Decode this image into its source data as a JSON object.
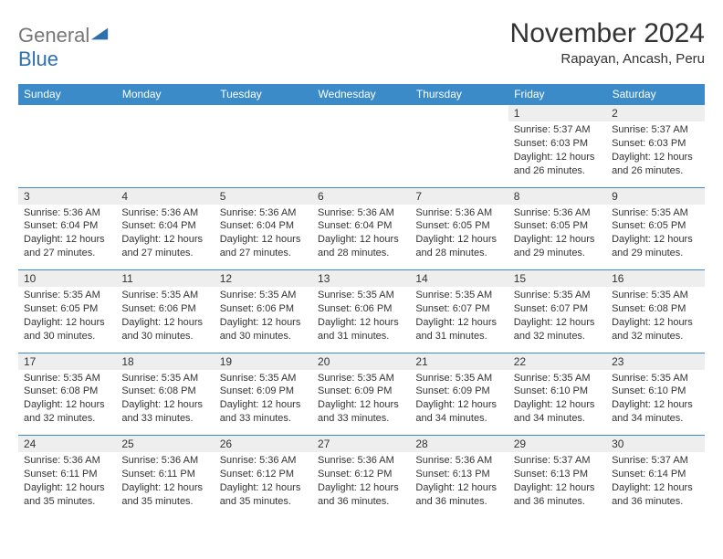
{
  "logo": {
    "word1": "General",
    "word2": "Blue"
  },
  "title": "November 2024",
  "location": "Rapayan, Ancash, Peru",
  "colors": {
    "header_bg": "#3b8bc9",
    "header_text": "#ffffff",
    "daynum_bg": "#eeeeee",
    "border": "#3b8bc9",
    "text": "#333333",
    "logo_gray": "#777777",
    "logo_blue": "#2e6fb0",
    "page_bg": "#ffffff"
  },
  "dayNames": [
    "Sunday",
    "Monday",
    "Tuesday",
    "Wednesday",
    "Thursday",
    "Friday",
    "Saturday"
  ],
  "weeks": [
    [
      null,
      null,
      null,
      null,
      null,
      {
        "n": "1",
        "sr": "5:37 AM",
        "ss": "6:03 PM",
        "dl": "12 hours and 26 minutes."
      },
      {
        "n": "2",
        "sr": "5:37 AM",
        "ss": "6:03 PM",
        "dl": "12 hours and 26 minutes."
      }
    ],
    [
      {
        "n": "3",
        "sr": "5:36 AM",
        "ss": "6:04 PM",
        "dl": "12 hours and 27 minutes."
      },
      {
        "n": "4",
        "sr": "5:36 AM",
        "ss": "6:04 PM",
        "dl": "12 hours and 27 minutes."
      },
      {
        "n": "5",
        "sr": "5:36 AM",
        "ss": "6:04 PM",
        "dl": "12 hours and 27 minutes."
      },
      {
        "n": "6",
        "sr": "5:36 AM",
        "ss": "6:04 PM",
        "dl": "12 hours and 28 minutes."
      },
      {
        "n": "7",
        "sr": "5:36 AM",
        "ss": "6:05 PM",
        "dl": "12 hours and 28 minutes."
      },
      {
        "n": "8",
        "sr": "5:36 AM",
        "ss": "6:05 PM",
        "dl": "12 hours and 29 minutes."
      },
      {
        "n": "9",
        "sr": "5:35 AM",
        "ss": "6:05 PM",
        "dl": "12 hours and 29 minutes."
      }
    ],
    [
      {
        "n": "10",
        "sr": "5:35 AM",
        "ss": "6:05 PM",
        "dl": "12 hours and 30 minutes."
      },
      {
        "n": "11",
        "sr": "5:35 AM",
        "ss": "6:06 PM",
        "dl": "12 hours and 30 minutes."
      },
      {
        "n": "12",
        "sr": "5:35 AM",
        "ss": "6:06 PM",
        "dl": "12 hours and 30 minutes."
      },
      {
        "n": "13",
        "sr": "5:35 AM",
        "ss": "6:06 PM",
        "dl": "12 hours and 31 minutes."
      },
      {
        "n": "14",
        "sr": "5:35 AM",
        "ss": "6:07 PM",
        "dl": "12 hours and 31 minutes."
      },
      {
        "n": "15",
        "sr": "5:35 AM",
        "ss": "6:07 PM",
        "dl": "12 hours and 32 minutes."
      },
      {
        "n": "16",
        "sr": "5:35 AM",
        "ss": "6:08 PM",
        "dl": "12 hours and 32 minutes."
      }
    ],
    [
      {
        "n": "17",
        "sr": "5:35 AM",
        "ss": "6:08 PM",
        "dl": "12 hours and 32 minutes."
      },
      {
        "n": "18",
        "sr": "5:35 AM",
        "ss": "6:08 PM",
        "dl": "12 hours and 33 minutes."
      },
      {
        "n": "19",
        "sr": "5:35 AM",
        "ss": "6:09 PM",
        "dl": "12 hours and 33 minutes."
      },
      {
        "n": "20",
        "sr": "5:35 AM",
        "ss": "6:09 PM",
        "dl": "12 hours and 33 minutes."
      },
      {
        "n": "21",
        "sr": "5:35 AM",
        "ss": "6:09 PM",
        "dl": "12 hours and 34 minutes."
      },
      {
        "n": "22",
        "sr": "5:35 AM",
        "ss": "6:10 PM",
        "dl": "12 hours and 34 minutes."
      },
      {
        "n": "23",
        "sr": "5:35 AM",
        "ss": "6:10 PM",
        "dl": "12 hours and 34 minutes."
      }
    ],
    [
      {
        "n": "24",
        "sr": "5:36 AM",
        "ss": "6:11 PM",
        "dl": "12 hours and 35 minutes."
      },
      {
        "n": "25",
        "sr": "5:36 AM",
        "ss": "6:11 PM",
        "dl": "12 hours and 35 minutes."
      },
      {
        "n": "26",
        "sr": "5:36 AM",
        "ss": "6:12 PM",
        "dl": "12 hours and 35 minutes."
      },
      {
        "n": "27",
        "sr": "5:36 AM",
        "ss": "6:12 PM",
        "dl": "12 hours and 36 minutes."
      },
      {
        "n": "28",
        "sr": "5:36 AM",
        "ss": "6:13 PM",
        "dl": "12 hours and 36 minutes."
      },
      {
        "n": "29",
        "sr": "5:37 AM",
        "ss": "6:13 PM",
        "dl": "12 hours and 36 minutes."
      },
      {
        "n": "30",
        "sr": "5:37 AM",
        "ss": "6:14 PM",
        "dl": "12 hours and 36 minutes."
      }
    ]
  ],
  "labels": {
    "sunrise": "Sunrise: ",
    "sunset": "Sunset: ",
    "daylight": "Daylight: "
  }
}
